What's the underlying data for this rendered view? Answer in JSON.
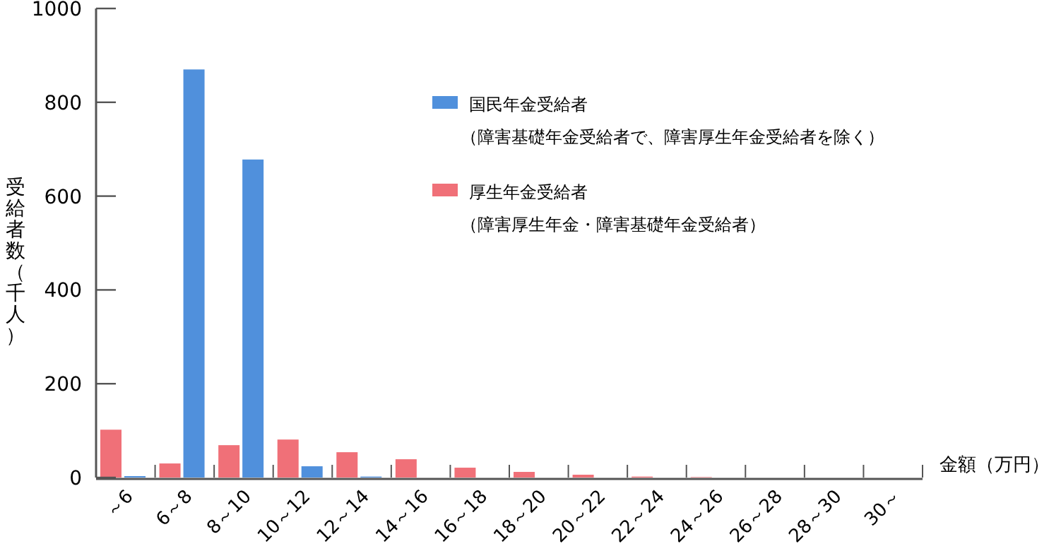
{
  "chart_data": {
    "type": "bar",
    "ylabel": "受給者数（千人）",
    "xlabel": "金額（万円）",
    "categories": [
      "～6",
      "6～8",
      "8～10",
      "10～12",
      "12～14",
      "14～16",
      "16～18",
      "18～20",
      "20～22",
      "22～24",
      "24～26",
      "26～28",
      "28～30",
      "30～"
    ],
    "series": [
      {
        "name": "厚生年金受給者（障害厚生年金・障害基礎年金受給者）",
        "color": "#f07078",
        "values": [
          102,
          30,
          69,
          81,
          54,
          39,
          21,
          12,
          6,
          2,
          1,
          0,
          0,
          0
        ]
      },
      {
        "name": "国民年金受給者（障害基礎年金受給者で、障害厚生年金受給者を除く）",
        "color": "#5090dc",
        "values": [
          3,
          870,
          678,
          24,
          2,
          0,
          0,
          0,
          0,
          0,
          0,
          0,
          0,
          0
        ]
      }
    ],
    "ylim": [
      0,
      1000
    ],
    "yticks": [
      0,
      200,
      400,
      600,
      800,
      1000
    ],
    "grid": false,
    "legend": "top right"
  }
}
